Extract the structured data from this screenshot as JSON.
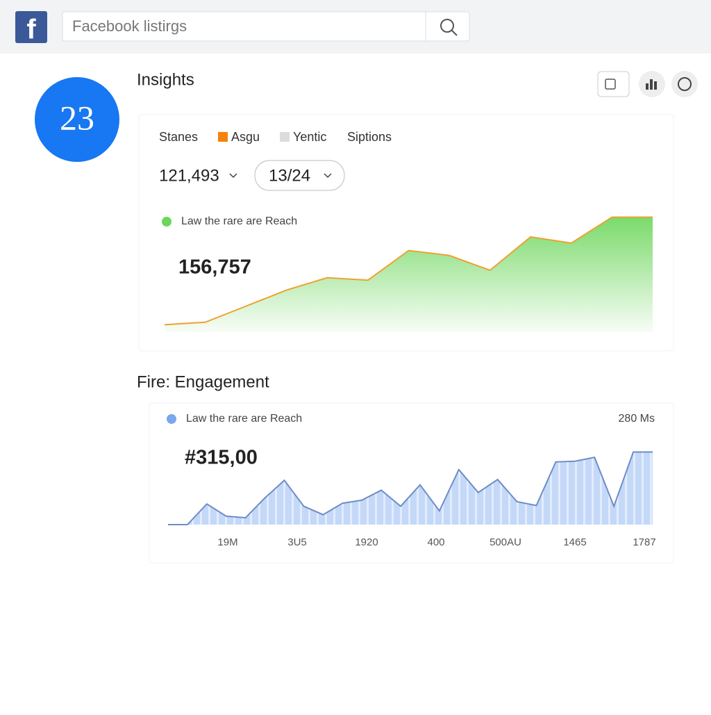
{
  "header": {
    "search_placeholder": "Facebook listirgs"
  },
  "badge": "23",
  "insights": {
    "title": "Insights",
    "tabs": [
      "Stanes",
      "Asgu",
      "Yentic",
      "Siptions"
    ],
    "tab_colors": [
      null,
      "#f5820d",
      "#dcdcdc",
      null
    ],
    "metric": "121,493",
    "date": "13/24"
  },
  "engagement": {
    "title": "Fire: Engagement"
  },
  "chart_data": [
    {
      "type": "area",
      "annotation": "156,757",
      "ylim": [
        0,
        100
      ],
      "series": [
        {
          "name": "Law the rare are Reach",
          "color": "#6bd65a",
          "line_color": "#f0a030",
          "values": [
            6,
            8,
            21,
            34,
            44,
            42,
            66,
            62,
            50,
            77,
            72,
            93,
            93
          ]
        }
      ]
    },
    {
      "type": "area",
      "annotation": "#315,00",
      "corner_label": "280 Ms",
      "ylim": [
        0,
        100
      ],
      "x_labels": [
        "19M",
        "3U5",
        "1920",
        "400",
        "500AU",
        "1465",
        "1787"
      ],
      "series": [
        {
          "name": "Law the rare are Reach",
          "color": "#7aa7ee",
          "line_color": "#6d8cc8",
          "values": [
            0,
            0,
            27,
            11,
            9,
            35,
            58,
            24,
            13,
            28,
            32,
            45,
            24,
            52,
            18,
            72,
            42,
            59,
            30,
            25,
            82,
            83,
            88,
            24,
            95,
            95
          ]
        }
      ]
    }
  ]
}
